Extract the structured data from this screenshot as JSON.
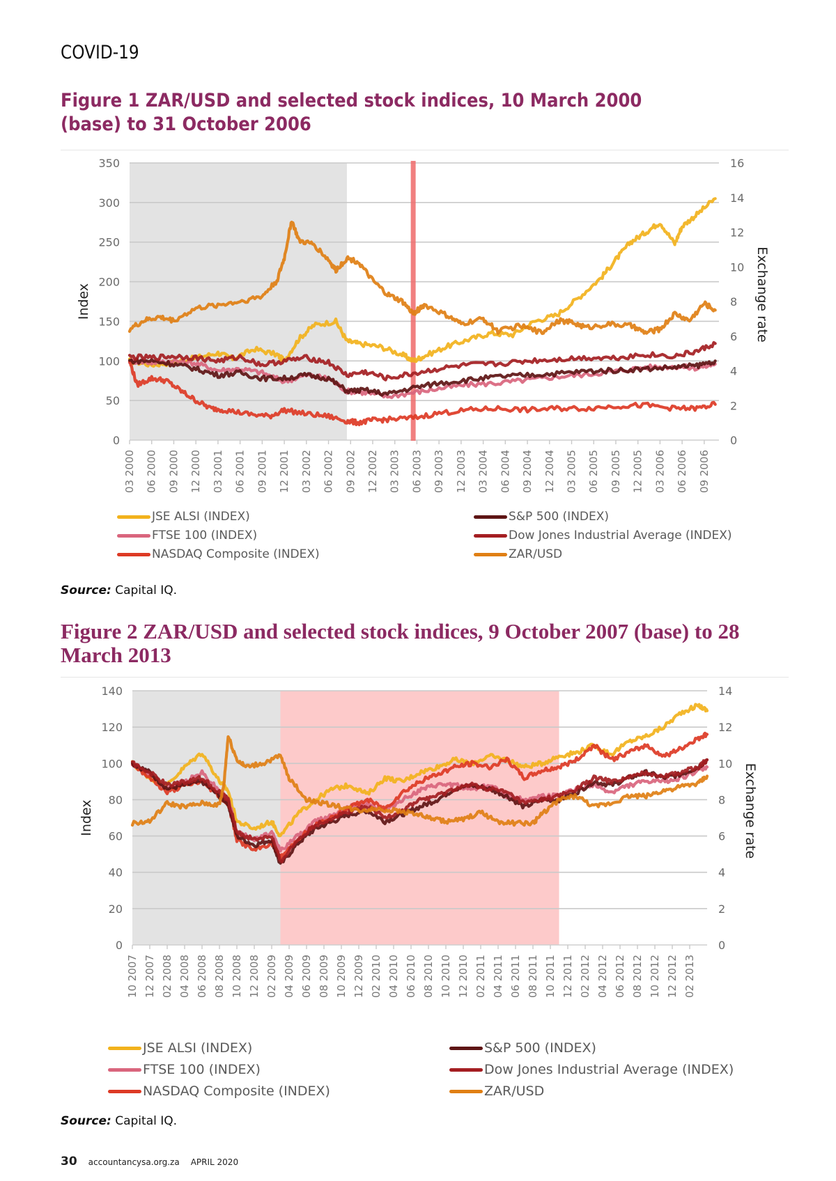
{
  "header": {
    "section": "COVID-19"
  },
  "figures": [
    {
      "title": "Figure 1 ZAR/USD and selected stock indices, 10 March 2000 (base) to 31 October 2006",
      "source_label": "Source:",
      "source_text": " Capital IQ."
    },
    {
      "title": "Figure 2 ZAR/USD and selected stock indices, 9 October 2007 (base) to 28 March 2013",
      "source_label": "Source:",
      "source_text": " Capital IQ."
    }
  ],
  "footer": {
    "page": "30",
    "site": "accountancysa.org.za",
    "date": "APRIL 2020"
  },
  "chart_data": [
    {
      "type": "line",
      "title": "Figure 1 ZAR/USD and selected stock indices, 10 March 2000 (base) to 31 October 2006",
      "xlabel": "",
      "ylabel": "Index",
      "y2label": "Exchange rate",
      "ylim": [
        0,
        350
      ],
      "y2lim": [
        0,
        16
      ],
      "yticks": [
        0,
        50,
        100,
        150,
        200,
        250,
        300,
        350
      ],
      "y2ticks": [
        0,
        2,
        4,
        6,
        8,
        10,
        12,
        14,
        16
      ],
      "grid": true,
      "legend": "bottom",
      "x_ticks": [
        "03 2000",
        "06 2000",
        "09 2000",
        "12 2000",
        "03 2001",
        "06 2001",
        "09 2001",
        "12 2001",
        "03 2002",
        "06 2002",
        "09 2002",
        "12 2002",
        "03 2003",
        "06 2003",
        "09 2003",
        "12 2003",
        "03 2004",
        "06 2004",
        "09 2004",
        "12 2004",
        "03 2005",
        "06 2005",
        "09 2005",
        "12 2005",
        "03 2006",
        "06 2006",
        "09 2006"
      ],
      "x_range_months": [
        0,
        80
      ],
      "shaded_regions": [
        {
          "from_month": 0,
          "to_month": 29.5,
          "color": "#e3e3e3"
        }
      ],
      "markers": [
        {
          "at_month": 38.5,
          "color": "#ef6b6b"
        }
      ],
      "series": [
        {
          "name": "JSE ALSI (INDEX)",
          "color": "#f2b21c",
          "axis": "left",
          "x": [
            0,
            3,
            6,
            9,
            12,
            14,
            17,
            20,
            21,
            23,
            25,
            28,
            29.5,
            31,
            34,
            37,
            38.5,
            40,
            43,
            46,
            49,
            52,
            55,
            58,
            61,
            64,
            66,
            68,
            70,
            72,
            74,
            75,
            77,
            79.5
          ],
          "y": [
            100,
            95,
            98,
            104,
            110,
            103,
            115,
            108,
            100,
            128,
            145,
            150,
            125,
            122,
            118,
            108,
            100,
            106,
            118,
            127,
            135,
            133,
            150,
            158,
            180,
            205,
            228,
            250,
            262,
            275,
            248,
            270,
            285,
            305
          ]
        },
        {
          "name": "FTSE 100 (INDEX)",
          "color": "#d9657d",
          "axis": "left",
          "x": [
            0,
            3,
            6,
            9,
            12,
            15,
            18,
            21,
            24,
            27,
            29.5,
            32,
            35,
            38.5,
            42,
            46,
            50,
            54,
            58,
            62,
            66,
            70,
            74,
            77,
            79.5
          ],
          "y": [
            100,
            98,
            100,
            97,
            88,
            90,
            85,
            74,
            82,
            78,
            62,
            60,
            55,
            60,
            65,
            70,
            72,
            76,
            80,
            83,
            87,
            92,
            93,
            91,
            96
          ]
        },
        {
          "name": "NASDAQ Composite (INDEX)",
          "color": "#dd3a25",
          "axis": "left",
          "x": [
            0,
            1,
            3,
            5,
            7,
            9,
            11,
            13,
            16,
            19,
            21,
            24,
            27,
            29.5,
            31,
            33,
            35,
            38.5,
            42,
            46,
            50,
            54,
            58,
            62,
            66,
            70,
            74,
            77,
            79.5
          ],
          "y": [
            100,
            70,
            78,
            75,
            62,
            50,
            40,
            38,
            33,
            30,
            38,
            33,
            30,
            24,
            22,
            25,
            26,
            28,
            34,
            38,
            40,
            38,
            40,
            40,
            43,
            44,
            40,
            40,
            45
          ]
        },
        {
          "name": "S&P 500 (INDEX)",
          "color": "#5e1515",
          "axis": "left",
          "x": [
            0,
            3,
            6,
            9,
            12,
            15,
            18,
            21,
            24,
            27,
            29.5,
            32,
            35,
            38.5,
            42,
            46,
            50,
            54,
            58,
            62,
            66,
            70,
            74,
            77,
            79.5
          ],
          "y": [
            100,
            100,
            96,
            90,
            82,
            85,
            78,
            78,
            82,
            78,
            62,
            63,
            58,
            66,
            72,
            76,
            80,
            82,
            84,
            87,
            88,
            90,
            92,
            94,
            100
          ]
        },
        {
          "name": "Dow Jones Industrial Average (INDEX)",
          "color": "#a41e22",
          "axis": "left",
          "x": [
            0,
            3,
            6,
            9,
            12,
            15,
            18,
            21,
            24,
            27,
            29.5,
            32,
            35,
            38.5,
            42,
            46,
            50,
            54,
            58,
            62,
            66,
            70,
            74,
            77,
            79.5
          ],
          "y": [
            105,
            104,
            106,
            104,
            100,
            105,
            95,
            100,
            104,
            98,
            82,
            86,
            78,
            84,
            90,
            95,
            96,
            100,
            102,
            104,
            104,
            108,
            106,
            112,
            122
          ]
        },
        {
          "name": "ZAR/USD",
          "color": "#e07f14",
          "axis": "right",
          "x": [
            0,
            2,
            4,
            6,
            9,
            12,
            15,
            18,
            20,
            21,
            22,
            23,
            25,
            27,
            28,
            29.5,
            31,
            33,
            35,
            37,
            38.5,
            40,
            43,
            45,
            48,
            50,
            53,
            56,
            58,
            60,
            62,
            65,
            68,
            70,
            72,
            74,
            76,
            78,
            79.5
          ],
          "y": [
            6.4,
            6.9,
            7.1,
            6.9,
            7.6,
            7.8,
            8.0,
            8.3,
            9.2,
            10.5,
            12.7,
            11.5,
            11.3,
            10.4,
            9.8,
            10.5,
            10.3,
            9.2,
            8.4,
            8.0,
            7.3,
            7.8,
            7.2,
            6.7,
            7.0,
            6.3,
            6.6,
            6.2,
            6.9,
            6.8,
            6.5,
            6.7,
            6.6,
            6.2,
            6.4,
            7.3,
            6.9,
            7.9,
            7.5
          ]
        }
      ]
    },
    {
      "type": "line",
      "title": "Figure 2 ZAR/USD and selected stock indices, 9 October 2007 (base) to 28 March 2013",
      "xlabel": "",
      "ylabel": "Index",
      "y2label": "Exchange rate",
      "ylim": [
        0,
        140
      ],
      "y2lim": [
        0,
        14
      ],
      "yticks": [
        0,
        20,
        40,
        60,
        80,
        100,
        120,
        140
      ],
      "y2ticks": [
        0,
        2,
        4,
        6,
        8,
        10,
        12,
        14
      ],
      "grid": true,
      "legend": "bottom",
      "x_ticks": [
        "10 2007",
        "12 2007",
        "02 2008",
        "04 2008",
        "06 2008",
        "08 2008",
        "10 2008",
        "12 2008",
        "02 2009",
        "04 2009",
        "06 2009",
        "08 2009",
        "10 2009",
        "12 2009",
        "02 2010",
        "04 2010",
        "06 2010",
        "08 2010",
        "10 2010",
        "12 2010",
        "02 2011",
        "04 2011",
        "06 2011",
        "08 2011",
        "10 2011",
        "12 2011",
        "02 2012",
        "04 2012",
        "06 2012",
        "08 2012",
        "10 2012",
        "12 2012",
        "02 2013"
      ],
      "x_range_months": [
        0,
        66
      ],
      "shaded_regions": [
        {
          "from_month": 0,
          "to_month": 17,
          "color": "#e3e3e3"
        },
        {
          "from_month": 17,
          "to_month": 49,
          "color": "#fdcaca"
        }
      ],
      "series": [
        {
          "name": "JSE ALSI (INDEX)",
          "color": "#f2b21c",
          "axis": "left",
          "x": [
            0,
            2,
            4,
            6,
            8,
            10,
            11,
            12,
            14,
            16,
            17,
            19,
            21,
            23,
            25,
            27,
            29,
            31,
            33,
            35,
            37,
            39,
            41,
            43,
            45,
            47,
            49,
            51,
            53,
            55,
            57,
            59,
            61,
            63,
            65,
            66
          ],
          "y": [
            100,
            92,
            88,
            98,
            106,
            90,
            85,
            68,
            64,
            68,
            60,
            72,
            80,
            86,
            88,
            83,
            92,
            90,
            95,
            98,
            102,
            100,
            104,
            102,
            98,
            100,
            104,
            106,
            110,
            105,
            112,
            115,
            120,
            128,
            132,
            129
          ]
        },
        {
          "name": "FTSE 100 (INDEX)",
          "color": "#d9657d",
          "axis": "left",
          "x": [
            0,
            2,
            4,
            6,
            8,
            10,
            11,
            12,
            14,
            16,
            17,
            19,
            21,
            23,
            25,
            27,
            29,
            31,
            33,
            35,
            37,
            39,
            41,
            43,
            45,
            47,
            49,
            51,
            53,
            55,
            57,
            59,
            61,
            63,
            65,
            66
          ],
          "y": [
            100,
            94,
            86,
            90,
            95,
            85,
            80,
            62,
            58,
            62,
            52,
            60,
            68,
            72,
            76,
            78,
            74,
            80,
            85,
            88,
            88,
            86,
            88,
            82,
            80,
            82,
            82,
            86,
            88,
            84,
            88,
            90,
            90,
            92,
            96,
            98
          ]
        },
        {
          "name": "NASDAQ Composite (INDEX)",
          "color": "#dd3a25",
          "axis": "left",
          "x": [
            0,
            2,
            4,
            6,
            8,
            10,
            11,
            12,
            14,
            16,
            17,
            19,
            21,
            23,
            25,
            27,
            29,
            31,
            33,
            35,
            37,
            39,
            41,
            43,
            45,
            47,
            49,
            51,
            53,
            55,
            57,
            59,
            61,
            63,
            65,
            66
          ],
          "y": [
            100,
            92,
            84,
            88,
            90,
            82,
            78,
            58,
            52,
            56,
            48,
            58,
            66,
            70,
            76,
            80,
            75,
            84,
            90,
            94,
            98,
            100,
            98,
            102,
            92,
            96,
            98,
            102,
            110,
            102,
            106,
            110,
            104,
            108,
            114,
            116
          ]
        },
        {
          "name": "S&P 500 (INDEX)",
          "color": "#5e1515",
          "axis": "left",
          "x": [
            0,
            2,
            4,
            6,
            8,
            10,
            11,
            12,
            14,
            16,
            17,
            19,
            21,
            23,
            25,
            27,
            29,
            31,
            33,
            35,
            37,
            39,
            41,
            43,
            45,
            47,
            49,
            51,
            53,
            55,
            57,
            59,
            61,
            63,
            65,
            66
          ],
          "y": [
            100,
            95,
            86,
            88,
            90,
            82,
            78,
            60,
            55,
            58,
            44,
            56,
            64,
            68,
            72,
            74,
            68,
            72,
            76,
            80,
            86,
            88,
            86,
            82,
            76,
            80,
            80,
            84,
            90,
            88,
            92,
            95,
            92,
            94,
            98,
            102
          ]
        },
        {
          "name": "Dow Jones Industrial Average (INDEX)",
          "color": "#a41e22",
          "axis": "left",
          "x": [
            0,
            2,
            4,
            6,
            8,
            10,
            11,
            12,
            14,
            16,
            17,
            19,
            21,
            23,
            25,
            27,
            29,
            31,
            33,
            35,
            37,
            39,
            41,
            43,
            45,
            47,
            49,
            51,
            53,
            55,
            57,
            59,
            61,
            63,
            65,
            66
          ],
          "y": [
            100,
            95,
            88,
            90,
            92,
            84,
            80,
            62,
            58,
            60,
            46,
            58,
            66,
            70,
            74,
            76,
            70,
            74,
            80,
            82,
            86,
            88,
            86,
            84,
            78,
            80,
            82,
            86,
            92,
            90,
            92,
            95,
            93,
            95,
            98,
            102
          ]
        },
        {
          "name": "ZAR/USD",
          "color": "#e07f14",
          "axis": "right",
          "x": [
            0,
            2,
            4,
            6,
            8,
            10,
            10.5,
            11,
            12,
            13,
            15,
            17,
            18,
            20,
            22,
            24,
            26,
            28,
            30,
            32,
            34,
            36,
            38,
            40,
            42,
            44,
            46,
            47,
            49,
            51,
            53,
            55,
            57,
            59,
            61,
            63,
            65,
            66
          ],
          "y": [
            6.7,
            6.8,
            7.8,
            7.6,
            7.8,
            7.7,
            8.8,
            11.5,
            10.2,
            9.8,
            10.0,
            10.4,
            9.2,
            8.0,
            7.8,
            7.6,
            7.4,
            7.5,
            7.4,
            7.3,
            7.0,
            6.8,
            6.9,
            7.3,
            6.8,
            6.7,
            6.7,
            7.2,
            8.0,
            8.2,
            7.6,
            7.8,
            8.2,
            8.2,
            8.5,
            8.7,
            8.9,
            9.3
          ]
        }
      ]
    }
  ]
}
